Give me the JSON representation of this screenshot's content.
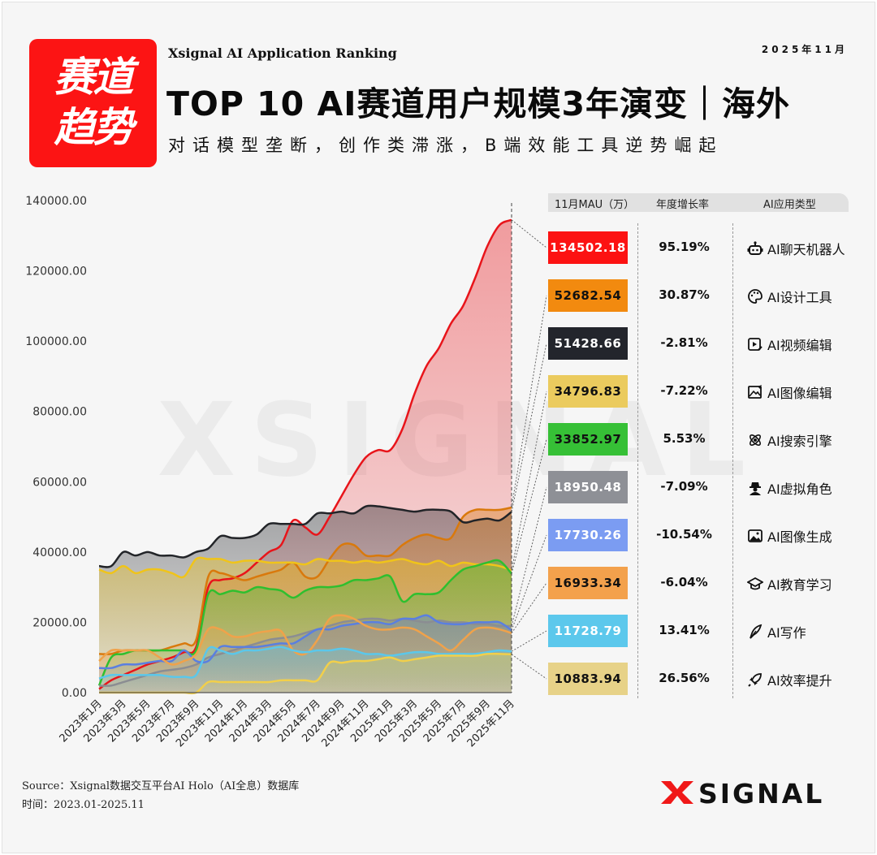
{
  "header": {
    "badge_line1": "赛道",
    "badge_line2": "趋势",
    "en_title": "Xsignal AI Application Ranking",
    "date": "2025年11月",
    "title": "TOP 10 AI赛道用户规模3年演变｜海外",
    "subtitle": "对话模型垄断，创作类滞涨，B端效能工具逆势崛起"
  },
  "table": {
    "col_mau": "11月MAU（万）",
    "col_growth": "年度增长率",
    "col_type": "AI应用类型"
  },
  "footer": {
    "source": "Source：Xsignal数据交互平台AI Holo（AI全息）数据库",
    "time": "时间：2023.01-2025.11",
    "logo": "XSIGNAL"
  },
  "watermark": "XSIGNAL",
  "chart_data": {
    "type": "area",
    "ylim": [
      0,
      140000
    ],
    "yticks": [
      "0.00",
      "20000.00",
      "40000.00",
      "60000.00",
      "80000.00",
      "100000.00",
      "120000.00",
      "140000.00"
    ],
    "x": [
      "2023年1月",
      "2023年2月",
      "2023年3月",
      "2023年4月",
      "2023年5月",
      "2023年6月",
      "2023年7月",
      "2023年8月",
      "2023年9月",
      "2023年10月",
      "2023年11月",
      "2023年12月",
      "2024年1月",
      "2024年2月",
      "2024年3月",
      "2024年4月",
      "2024年5月",
      "2024年6月",
      "2024年7月",
      "2024年8月",
      "2024年9月",
      "2024年10月",
      "2024年11月",
      "2024年12月",
      "2025年1月",
      "2025年2月",
      "2025年3月",
      "2025年4月",
      "2025年5月",
      "2025年6月",
      "2025年7月",
      "2025年8月",
      "2025年9月",
      "2025年10月",
      "2025年11月"
    ],
    "xtick_labels": [
      "2023年1月",
      "2023年3月",
      "2023年5月",
      "2023年7月",
      "2023年9月",
      "2023年11月",
      "2024年1月",
      "2024年3月",
      "2024年5月",
      "2024年7月",
      "2024年9月",
      "2024年11月",
      "2025年1月",
      "2025年3月",
      "2025年5月",
      "2025年7月",
      "2025年9月",
      "2025年11月"
    ],
    "series": [
      {
        "name": "AI聊天机器人",
        "mau": "134502.18",
        "growth": "95.19%",
        "icon": "robot-icon",
        "color": "#e8141a",
        "box": "#fc1212",
        "text": "#ffffff",
        "values": [
          1000,
          3500,
          5000,
          6500,
          8000,
          9000,
          10000,
          11500,
          13000,
          30000,
          32000,
          32500,
          34000,
          37000,
          40000,
          42000,
          49000,
          47000,
          45000,
          50000,
          56000,
          62000,
          67000,
          69000,
          69000,
          75000,
          85000,
          93000,
          98000,
          105000,
          110000,
          118000,
          127000,
          133000,
          134502
        ]
      },
      {
        "name": "AI设计工具",
        "mau": "52682.54",
        "growth": "30.87%",
        "icon": "palette-icon",
        "color": "#d9790c",
        "box": "#f28a0f",
        "text": "#111111",
        "values": [
          11000,
          11000,
          12000,
          12000,
          12000,
          12000,
          13000,
          14000,
          15000,
          33000,
          34000,
          33000,
          32000,
          33000,
          34000,
          35000,
          37000,
          33000,
          33000,
          38000,
          42000,
          42000,
          39000,
          39000,
          39000,
          42000,
          44000,
          45000,
          44000,
          44000,
          50000,
          52000,
          52000,
          52000,
          52683
        ]
      },
      {
        "name": "AI视频编辑",
        "mau": "51428.66",
        "growth": "-2.81%",
        "icon": "video-icon",
        "color": "#222428",
        "box": "#23252c",
        "text": "#ffffff",
        "values": [
          36000,
          36000,
          40000,
          39000,
          40000,
          39000,
          39000,
          38500,
          40000,
          41000,
          44500,
          44000,
          44000,
          45000,
          48000,
          48000,
          48000,
          48000,
          51000,
          51000,
          51500,
          51000,
          53000,
          53000,
          52500,
          52000,
          51500,
          52000,
          52000,
          51500,
          48500,
          49000,
          49500,
          49000,
          51429
        ]
      },
      {
        "name": "AI图像编辑",
        "mau": "34796.83",
        "growth": "-7.22%",
        "icon": "image-edit-icon",
        "color": "#f0c419",
        "box": "#ebcb5e",
        "text": "#111111",
        "values": [
          35000,
          34000,
          36000,
          34000,
          35000,
          35000,
          34000,
          33000,
          38000,
          38000,
          38000,
          37000,
          37500,
          37500,
          37000,
          37000,
          37000,
          36500,
          38000,
          37500,
          37500,
          37000,
          37500,
          37000,
          37500,
          38000,
          37000,
          36500,
          37500,
          36000,
          37000,
          36500,
          36500,
          36000,
          34797
        ]
      },
      {
        "name": "AI搜索引擎",
        "mau": "33852.97",
        "growth": "5.53%",
        "icon": "search-engine-icon",
        "color": "#2fbf2f",
        "box": "#36c036",
        "text": "#111111",
        "values": [
          2000,
          10000,
          11000,
          12000,
          12000,
          12000,
          12000,
          12000,
          12000,
          28000,
          28000,
          29000,
          28500,
          30000,
          29500,
          29000,
          27000,
          29000,
          30000,
          30000,
          30500,
          32000,
          32000,
          32500,
          33000,
          26000,
          28000,
          28000,
          28500,
          32000,
          35000,
          36000,
          37000,
          37500,
          33853
        ]
      },
      {
        "name": "AI虚拟角色",
        "mau": "18950.48",
        "growth": "-7.09%",
        "icon": "character-icon",
        "color": "#8b8d92",
        "box": "#8e9096",
        "text": "#ffffff",
        "values": [
          2000,
          2000,
          3000,
          4000,
          5000,
          6000,
          6500,
          7000,
          8000,
          10000,
          11000,
          12000,
          13000,
          14000,
          15000,
          15500,
          16000,
          17000,
          18000,
          19000,
          20000,
          20500,
          21000,
          21000,
          20500,
          21000,
          20500,
          20000,
          20500,
          20000,
          20000,
          19500,
          19500,
          19000,
          18950
        ]
      },
      {
        "name": "AI图像生成",
        "mau": "17730.26",
        "growth": "-10.54%",
        "icon": "image-icon",
        "color": "#5a7fe0",
        "box": "#7b9cf2",
        "text": "#ffffff",
        "values": [
          7000,
          7000,
          8000,
          8000,
          8500,
          9000,
          9000,
          12000,
          9000,
          9000,
          13000,
          13000,
          13000,
          13000,
          13500,
          14000,
          14000,
          16000,
          18000,
          18000,
          19000,
          19500,
          20000,
          20000,
          19500,
          21000,
          21000,
          22000,
          20000,
          19500,
          19500,
          20000,
          20000,
          20000,
          17730
        ]
      },
      {
        "name": "AI教育学习",
        "mau": "16933.34",
        "growth": "-6.04%",
        "icon": "graduation-cap-icon",
        "color": "#f0a24a",
        "box": "#f3a14c",
        "text": "#111111",
        "values": [
          9000,
          12000,
          12000,
          12000,
          12000,
          10000,
          8000,
          9000,
          11000,
          18000,
          18000,
          16000,
          16000,
          17000,
          17500,
          17500,
          12000,
          11000,
          15000,
          21000,
          22000,
          21000,
          19000,
          18000,
          18000,
          18500,
          18000,
          16000,
          14000,
          12000,
          15000,
          18000,
          18500,
          18000,
          16933
        ]
      },
      {
        "name": "AI写作",
        "mau": "11728.79",
        "growth": "13.41%",
        "icon": "pen-icon",
        "color": "#5bc7ea",
        "box": "#5cc8ec",
        "text": "#ffffff",
        "values": [
          4000,
          5000,
          5000,
          5000,
          5000,
          5000,
          4500,
          4500,
          5000,
          12500,
          12000,
          11000,
          12000,
          12000,
          12500,
          13000,
          12000,
          11500,
          12000,
          12000,
          12500,
          12000,
          11000,
          11000,
          10500,
          11000,
          11500,
          11500,
          11000,
          11000,
          11000,
          11000,
          11500,
          12000,
          11729
        ]
      },
      {
        "name": "AI效率提升",
        "mau": "10883.94",
        "growth": "26.56%",
        "icon": "rocket-icon",
        "color": "#f2cf4a",
        "box": "#e7d288",
        "text": "#111111",
        "values": [
          0,
          0,
          0,
          0,
          0,
          0,
          0,
          0,
          0,
          3000,
          3000,
          3000,
          3000,
          3000,
          3000,
          3500,
          3500,
          3500,
          3500,
          8500,
          8500,
          9000,
          9000,
          9500,
          10000,
          9000,
          9500,
          10000,
          10500,
          10500,
          10500,
          10500,
          11000,
          11000,
          10884
        ]
      }
    ]
  }
}
